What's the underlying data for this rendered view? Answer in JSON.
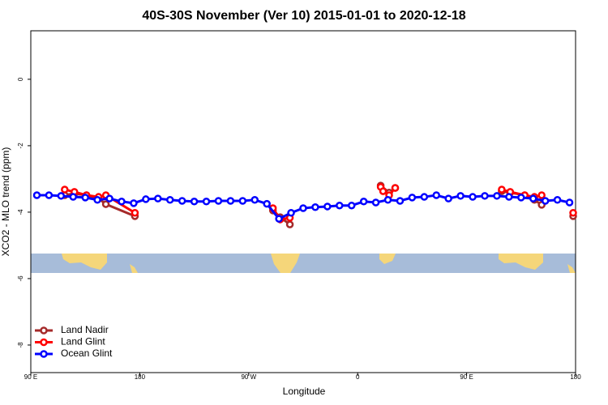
{
  "chart_data": {
    "type": "line",
    "title": "40S-30S November (Ver 10)   2015-01-01 to 2020-12-18",
    "x_label": "Longitude",
    "y_label": "XCO2 - MLO trend (ppm)",
    "xlim": [
      90,
      540
    ],
    "xticks": [
      {
        "value": 90,
        "label": "90 E"
      },
      180,
      {
        "value": 270,
        "label": "90 W"
      },
      {
        "value": 360,
        "label": "0"
      },
      {
        "value": 450,
        "label": "90 E"
      },
      {
        "value": 540,
        "label": "180"
      }
    ],
    "ylim": [
      -8.83,
      1.46
    ],
    "yticks": [
      0,
      -2,
      -4,
      -6,
      -8
    ],
    "grid": false,
    "legend": "bottom-left",
    "series": [
      {
        "name": "Land Nadir",
        "color": "#a52a2a",
        "x": [
          118,
          126,
          136,
          146,
          152,
          176,
          null,
          290,
          296,
          304,
          null,
          379,
          386,
          391,
          null,
          479,
          486,
          498,
          506,
          512,
          null,
          538
        ],
        "values": [
          -3.49,
          -3.44,
          -3.49,
          -3.59,
          -3.76,
          -4.12,
          null,
          -3.95,
          -4.15,
          -4.37,
          null,
          -3.2,
          -3.41,
          -3.27,
          null,
          -3.37,
          -3.41,
          -3.49,
          -3.63,
          -3.78,
          null,
          -4.12
        ]
      },
      {
        "name": "Land Glint",
        "color": "#ff0000",
        "x": [
          118,
          126,
          136,
          146,
          152,
          176,
          null,
          290,
          296,
          304,
          null,
          379,
          381,
          386,
          391,
          null,
          479,
          486,
          498,
          506,
          512,
          null,
          538
        ],
        "values": [
          -3.32,
          -3.39,
          -3.49,
          -3.54,
          -3.49,
          -4.02,
          null,
          -3.88,
          -4.22,
          -4.17,
          null,
          -3.24,
          -3.37,
          -3.49,
          -3.27,
          null,
          -3.32,
          -3.39,
          -3.49,
          -3.54,
          -3.49,
          null,
          -4.02
        ]
      },
      {
        "name": "Ocean Glint",
        "color": "#0000ff",
        "x": [
          95,
          105,
          115,
          125,
          135,
          145,
          155,
          165,
          175,
          185,
          195,
          205,
          215,
          225,
          235,
          245,
          255,
          265,
          275,
          285,
          295,
          305,
          315,
          325,
          335,
          345,
          355,
          365,
          375,
          385,
          395,
          405,
          415,
          425,
          435,
          445,
          455,
          465,
          475,
          485,
          495,
          505,
          515,
          525,
          535
        ],
        "values": [
          -3.49,
          -3.49,
          -3.51,
          -3.54,
          -3.56,
          -3.63,
          -3.59,
          -3.68,
          -3.73,
          -3.61,
          -3.59,
          -3.63,
          -3.66,
          -3.68,
          -3.68,
          -3.66,
          -3.66,
          -3.66,
          -3.63,
          -3.75,
          -4.2,
          -4.02,
          -3.88,
          -3.85,
          -3.83,
          -3.8,
          -3.8,
          -3.68,
          -3.71,
          -3.63,
          -3.66,
          -3.56,
          -3.54,
          -3.49,
          -3.59,
          -3.51,
          -3.54,
          -3.51,
          -3.51,
          -3.54,
          -3.56,
          -3.59,
          -3.66,
          -3.63,
          -3.71
        ]
      }
    ]
  }
}
